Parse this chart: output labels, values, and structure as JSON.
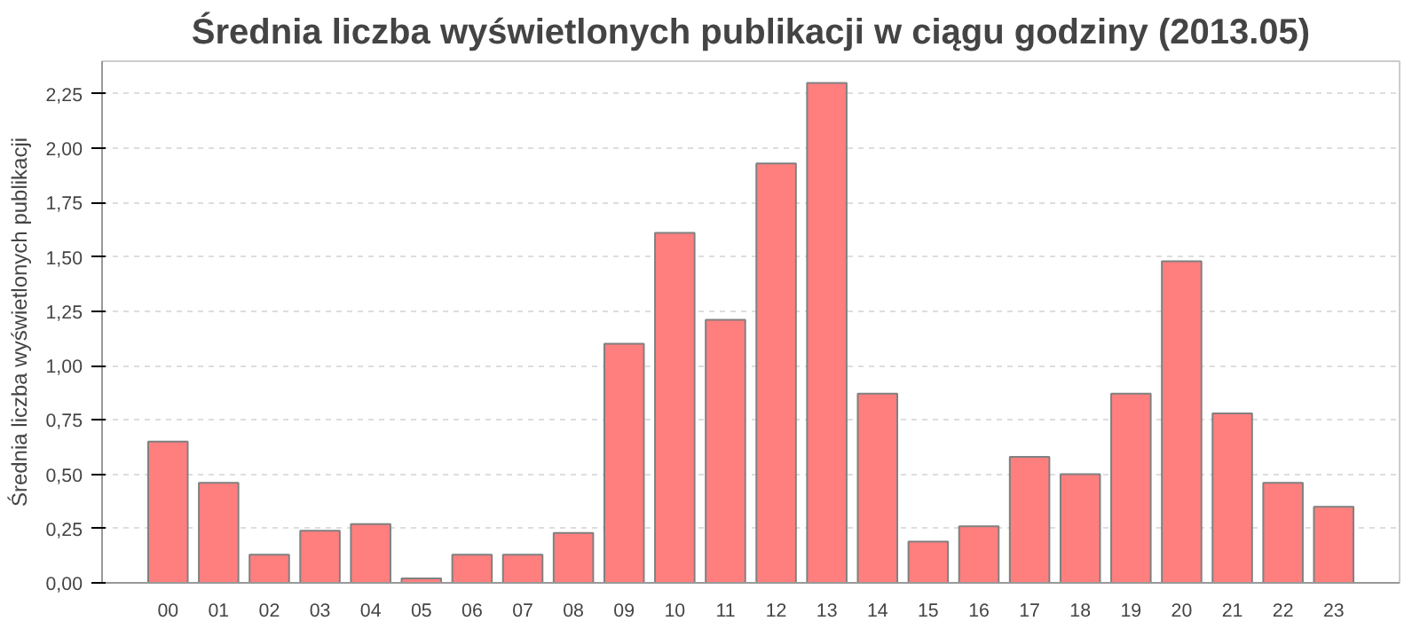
{
  "chart_data": {
    "type": "bar",
    "title": "Średnia liczba wyświetlonych publikacji w ciągu godziny (2013.05)",
    "ylabel": "Średnia liczba wyświetlonych publikacji",
    "categories": [
      "00",
      "01",
      "02",
      "03",
      "04",
      "05",
      "06",
      "07",
      "08",
      "09",
      "10",
      "11",
      "12",
      "13",
      "14",
      "15",
      "16",
      "17",
      "18",
      "19",
      "20",
      "21",
      "22",
      "23"
    ],
    "values": [
      0.65,
      0.46,
      0.13,
      0.24,
      0.27,
      0.02,
      0.13,
      0.13,
      0.23,
      1.1,
      1.61,
      1.21,
      1.93,
      2.3,
      0.87,
      0.19,
      0.26,
      0.58,
      0.5,
      0.87,
      1.48,
      0.78,
      0.46,
      0.35
    ],
    "color": "#ff7f7f",
    "ylim": [
      0,
      2.4
    ],
    "yticks": [
      {
        "value": 0,
        "label": "0,00"
      },
      {
        "value": 0.25,
        "label": "0,25"
      },
      {
        "value": 0.5,
        "label": "0,50"
      },
      {
        "value": 0.75,
        "label": "0,75"
      },
      {
        "value": 1,
        "label": "1,00"
      },
      {
        "value": 1.25,
        "label": "1,25"
      },
      {
        "value": 1.5,
        "label": "1,50"
      },
      {
        "value": 1.75,
        "label": "1,75"
      },
      {
        "value": 2,
        "label": "2,00"
      },
      {
        "value": 2.25,
        "label": "2,25"
      }
    ],
    "grid": "y"
  }
}
